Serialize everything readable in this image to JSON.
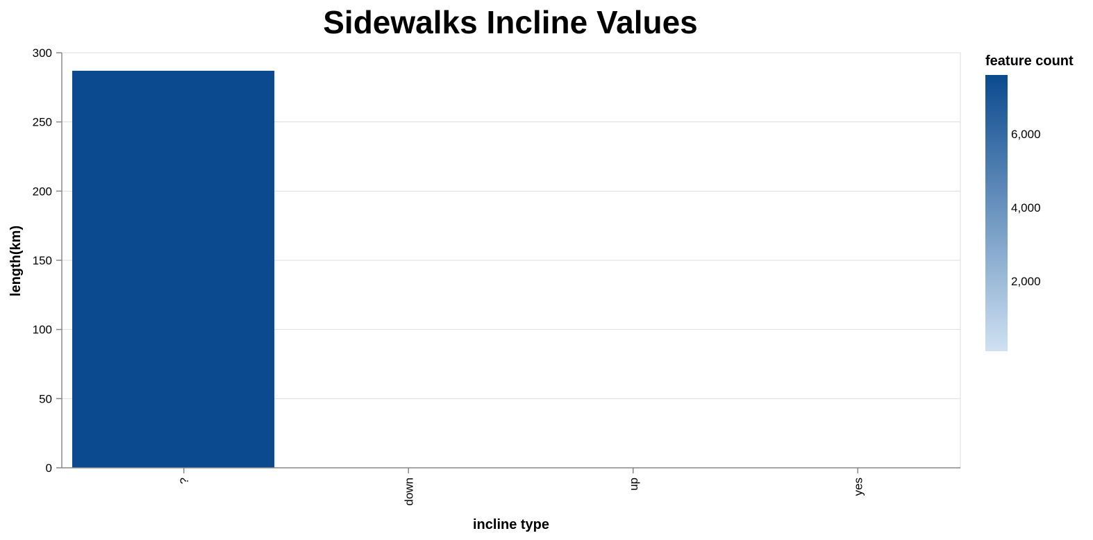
{
  "chart_data": {
    "type": "bar",
    "title": "Sidewalks Incline Values",
    "xlabel": "incline type",
    "ylabel": "length(km)",
    "categories": [
      "?",
      "down",
      "up",
      "yes"
    ],
    "values": [
      287,
      0,
      0,
      0
    ],
    "color_values": [
      7600,
      0,
      0,
      0
    ],
    "ylim": [
      0,
      300
    ],
    "yticks": [
      0,
      50,
      100,
      150,
      200,
      250,
      300
    ],
    "grid": true,
    "legend": {
      "title": "feature count",
      "type": "gradient",
      "placement": "right",
      "domain": [
        100,
        7600
      ],
      "ticks": [
        2000,
        4000,
        6000
      ],
      "tick_labels": [
        "2,000",
        "4,000",
        "6,000"
      ],
      "color_low": "#cfe1f2",
      "color_high": "#0b4a8e"
    },
    "colors": {
      "bar": "#0b4a8e",
      "grid": "#dddddd",
      "axis": "#888888"
    }
  }
}
